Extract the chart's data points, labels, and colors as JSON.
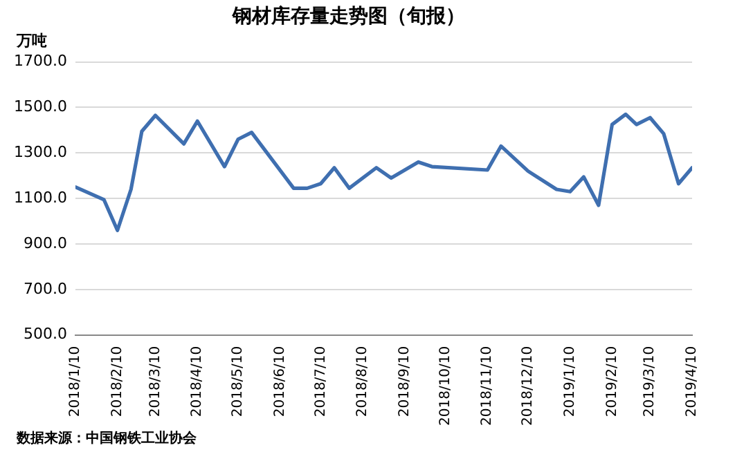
{
  "chart_data": {
    "type": "line",
    "title": "钢材库存量走势图（旬报）",
    "ylabel": "万吨",
    "annotations": [
      "数据来源：中国钢铁工业协会"
    ],
    "x": [
      "2018-01-10",
      "2018-01-31",
      "2018-02-10",
      "2018-02-20",
      "2018-02-28",
      "2018-03-10",
      "2018-03-31",
      "2018-04-10",
      "2018-04-30",
      "2018-05-10",
      "2018-05-20",
      "2018-06-20",
      "2018-06-30",
      "2018-07-10",
      "2018-07-20",
      "2018-07-31",
      "2018-08-20",
      "2018-08-31",
      "2018-09-20",
      "2018-09-30",
      "2018-11-10",
      "2018-11-20",
      "2018-12-10",
      "2018-12-31",
      "2019-01-10",
      "2019-01-20",
      "2019-01-31",
      "2019-02-10",
      "2019-02-20",
      "2019-02-28",
      "2019-03-10",
      "2019-03-20",
      "2019-03-31",
      "2019-04-10"
    ],
    "series": [
      {
        "color": "#3f6fb0",
        "values": [
          1150,
          1095,
          960,
          1140,
          1395,
          1465,
          1340,
          1440,
          1240,
          1360,
          1390,
          1145,
          1145,
          1165,
          1235,
          1145,
          1235,
          1190,
          1260,
          1240,
          1225,
          1330,
          1220,
          1140,
          1130,
          1195,
          1070,
          1425,
          1470,
          1425,
          1455,
          1385,
          1165,
          1235
        ]
      }
    ],
    "xlim": [
      "2018-01-10",
      "2019-04-10"
    ],
    "xticks": [
      {
        "value": "2018-01-10",
        "label": "2018/1/10"
      },
      {
        "value": "2018-02-10",
        "label": "2018/2/10"
      },
      {
        "value": "2018-03-10",
        "label": "2018/3/10"
      },
      {
        "value": "2018-04-10",
        "label": "2018/4/10"
      },
      {
        "value": "2018-05-10",
        "label": "2018/5/10"
      },
      {
        "value": "2018-06-10",
        "label": "2018/6/10"
      },
      {
        "value": "2018-07-10",
        "label": "2018/7/10"
      },
      {
        "value": "2018-08-10",
        "label": "2018/8/10"
      },
      {
        "value": "2018-09-10",
        "label": "2018/9/10"
      },
      {
        "value": "2018-10-10",
        "label": "2018/10/10"
      },
      {
        "value": "2018-11-10",
        "label": "2018/11/10"
      },
      {
        "value": "2018-12-10",
        "label": "2018/12/10"
      },
      {
        "value": "2019-01-10",
        "label": "2019/1/10"
      },
      {
        "value": "2019-02-10",
        "label": "2019/2/10"
      },
      {
        "value": "2019-03-10",
        "label": "2019/3/10"
      },
      {
        "value": "2019-04-10",
        "label": "2019/4/10"
      }
    ],
    "ylim": [
      500,
      1700
    ],
    "yticks": [
      {
        "value": 500,
        "label": "500.0"
      },
      {
        "value": 700,
        "label": "700.0"
      },
      {
        "value": 900,
        "label": "900.0"
      },
      {
        "value": 1100,
        "label": "1100.0"
      },
      {
        "value": 1300,
        "label": "1300.0"
      },
      {
        "value": 1500,
        "label": "1500.0"
      },
      {
        "value": 1700,
        "label": "1700.0"
      }
    ],
    "grid": "y",
    "legend": false,
    "marker": "none",
    "line_style": "solid"
  }
}
